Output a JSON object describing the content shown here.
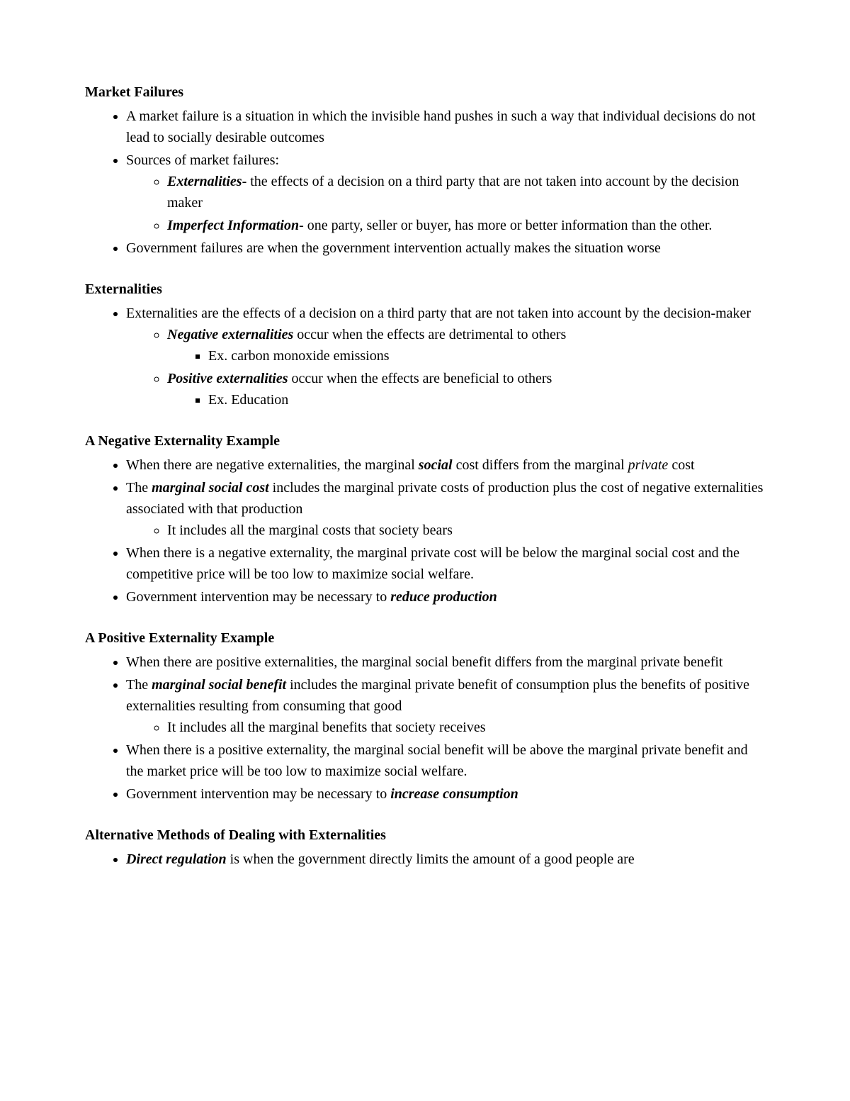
{
  "section1": {
    "heading": "Market Failures",
    "bullet1": "A market failure is a situation in which the invisible hand pushes in such a way that individual decisions do not lead to socially desirable outcomes",
    "bullet2": "Sources of market failures:",
    "sub1_term": "Externalities",
    "sub1_rest": "- the effects of a decision on a third party that are not taken into account by the decision maker",
    "sub2_term": "Imperfect Information",
    "sub2_rest": "- one party, seller or buyer, has more or better information than the other.",
    "bullet3": "Government failures are when the government intervention actually makes the situation worse"
  },
  "section2": {
    "heading": "Externalities",
    "bullet1": "Externalities are the effects of a decision on a third party that are not taken into account by the decision-maker",
    "sub1_term": "Negative externalities",
    "sub1_rest": " occur when the effects are detrimental to others",
    "sub1_ex": "Ex. carbon monoxide emissions",
    "sub2_term": "Positive externalities",
    "sub2_rest": " occur when the effects are beneficial to others",
    "sub2_ex": "Ex. Education"
  },
  "section3": {
    "heading": "A Negative Externality Example",
    "b1a": "When there are negative externalities, the marginal ",
    "b1b": "social",
    "b1c": " cost differs from the marginal ",
    "b1d": "private",
    "b1e": " cost",
    "b2a": "The ",
    "b2b": "marginal social cost",
    "b2c": " includes the marginal private costs of production plus the cost of negative externalities associated with that production",
    "b2sub": "It includes all the marginal costs that society bears",
    "b3": "When there is a negative externality, the marginal private cost will be below the marginal social cost and the competitive price will be too low to maximize social welfare.",
    "b4a": "Government intervention may be necessary to ",
    "b4b": "reduce production"
  },
  "section4": {
    "heading": "A Positive Externality Example",
    "b1": "When there are positive externalities, the marginal social benefit differs from the marginal private benefit",
    "b2a": "The ",
    "b2b": "marginal social benefit",
    "b2c": " includes the marginal private benefit of consumption plus the benefits of positive externalities resulting from consuming that good",
    "b2sub": "It includes all the marginal benefits that society receives",
    "b3": "When there is a positive externality, the marginal social benefit will be above the marginal private benefit and the market price will be too low to maximize social welfare.",
    "b4a": "Government intervention may be necessary to ",
    "b4b": "increase consumption"
  },
  "section5": {
    "heading": "Alternative Methods of Dealing with Externalities",
    "b1a": "Direct regulation",
    "b1b": " is when the government directly limits the amount of a good people are"
  }
}
